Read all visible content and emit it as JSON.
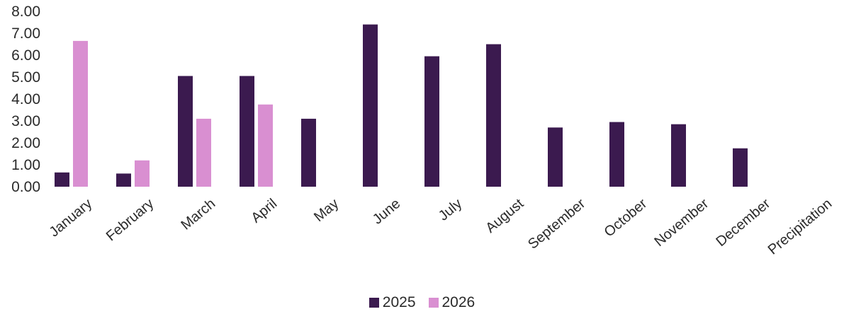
{
  "chart_data": {
    "type": "bar",
    "categories": [
      "January",
      "February",
      "March",
      "April",
      "May",
      "June",
      "July",
      "August",
      "September",
      "October",
      "November",
      "December",
      "Precipitation"
    ],
    "series": [
      {
        "name": "2025",
        "values": [
          0.65,
          0.6,
          5.05,
          5.05,
          3.1,
          7.4,
          5.95,
          6.5,
          2.7,
          2.95,
          2.85,
          1.75,
          null
        ]
      },
      {
        "name": "2026",
        "values": [
          6.65,
          1.2,
          3.1,
          3.75,
          null,
          null,
          null,
          null,
          null,
          null,
          null,
          null,
          null
        ]
      }
    ],
    "colors": [
      "#3b1a4f",
      "#d98fd1"
    ],
    "ylim": [
      0,
      8
    ],
    "yticks": [
      "0.00",
      "1.00",
      "2.00",
      "3.00",
      "4.00",
      "5.00",
      "6.00",
      "7.00",
      "8.00"
    ],
    "title": "",
    "xlabel": "",
    "ylabel": "",
    "grid": false,
    "legend": "bottom-center"
  }
}
